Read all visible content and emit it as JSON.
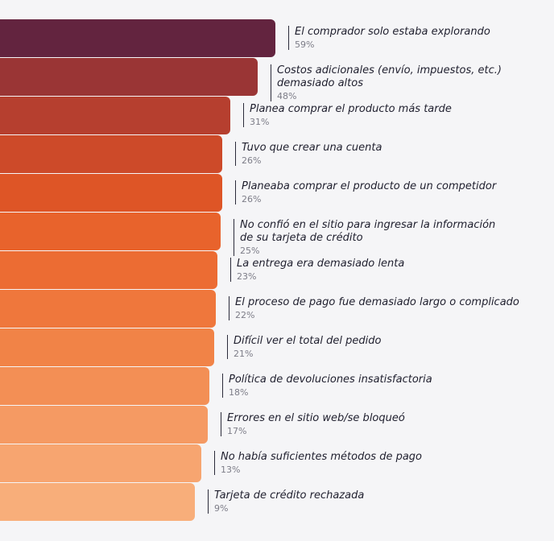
{
  "chart_data": {
    "type": "bar",
    "orientation": "horizontal",
    "title": "",
    "xlabel": "",
    "ylabel": "",
    "value_unit": "%",
    "grid": false,
    "legend": "none",
    "categories": [
      [
        "El comprador solo estaba explorando"
      ],
      [
        "Costos adicionales (envío, impuestos, etc.)",
        "demasiado altos"
      ],
      [
        "Planea comprar el producto más tarde"
      ],
      [
        "Tuvo que crear una cuenta"
      ],
      [
        "Planeaba comprar el producto de un competidor"
      ],
      [
        "No confió en el sitio para ingresar la información",
        "de su tarjeta de crédito"
      ],
      [
        "La entrega era demasiado lenta"
      ],
      [
        "El proceso de pago fue demasiado largo o complicado"
      ],
      [
        "Difícil ver el total del pedido"
      ],
      [
        "Política de devoluciones insatisfactoria"
      ],
      [
        "Errores en el sitio web/se bloqueó"
      ],
      [
        "No había suficientes métodos de pago"
      ],
      [
        "Tarjeta de crédito rechazada"
      ]
    ],
    "values": [
      59,
      48,
      31,
      26,
      26,
      25,
      23,
      22,
      21,
      18,
      17,
      13,
      9
    ],
    "value_labels": [
      "59%",
      "48%",
      "31%",
      "26%",
      "26%",
      "25%",
      "23%",
      "22%",
      "21%",
      "18%",
      "17%",
      "13%",
      "9%"
    ],
    "colors": [
      "#63243f",
      "#9a3535",
      "#b63f2f",
      "#cd4a29",
      "#de5526",
      "#e8632c",
      "#ec6c33",
      "#ef773c",
      "#f18347",
      "#f38f55",
      "#f59a63",
      "#f7a570",
      "#f8ae7a"
    ]
  }
}
